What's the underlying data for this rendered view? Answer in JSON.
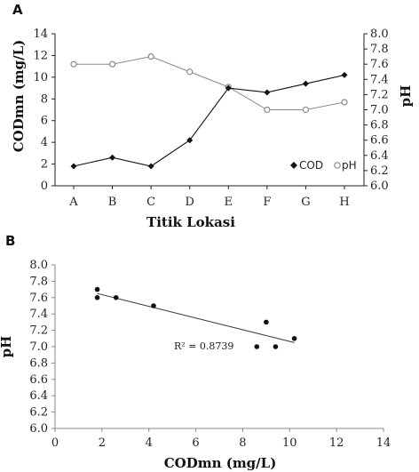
{
  "chart_data": [
    {
      "panel_label": "A",
      "type": "line",
      "categories": [
        "A",
        "B",
        "C",
        "D",
        "E",
        "F",
        "G",
        "H"
      ],
      "xlabel": "Titik Lokasi",
      "ylabel": "CODmn (mg/L)",
      "ylim": [
        0,
        14
      ],
      "yticks": [
        "0",
        "2",
        "4",
        "6",
        "8",
        "10",
        "12",
        "14"
      ],
      "y2label": "pH",
      "y2lim": [
        6.0,
        8.0
      ],
      "y2ticks": [
        "6.0",
        "6.2",
        "6.4",
        "6.6",
        "6.8",
        "7.0",
        "7.2",
        "7.4",
        "7.6",
        "7.8",
        "8.0"
      ],
      "legend_position": "bottom-right",
      "series": [
        {
          "name": "COD",
          "axis": "left",
          "marker": "filled-diamond",
          "color": "#111111",
          "values": [
            1.8,
            2.6,
            1.8,
            4.2,
            9.0,
            8.6,
            9.4,
            10.2
          ]
        },
        {
          "name": "pH",
          "axis": "right",
          "marker": "open-circle",
          "color": "#888888",
          "values": [
            7.6,
            7.6,
            7.7,
            7.5,
            7.3,
            7.0,
            7.0,
            7.1
          ]
        }
      ]
    },
    {
      "panel_label": "B",
      "type": "scatter",
      "xlabel": "CODmn (mg/L)",
      "ylabel": "pH",
      "xlim": [
        0,
        14
      ],
      "xticks": [
        "0",
        "2",
        "4",
        "6",
        "8",
        "10",
        "12",
        "14"
      ],
      "ylim": [
        6.0,
        8.0
      ],
      "yticks": [
        "6.0",
        "6.2",
        "6.4",
        "6.6",
        "6.8",
        "7.0",
        "7.2",
        "7.4",
        "7.6",
        "7.8",
        "8.0"
      ],
      "points": [
        {
          "x": 1.8,
          "y": 7.7
        },
        {
          "x": 1.8,
          "y": 7.6
        },
        {
          "x": 2.6,
          "y": 7.6
        },
        {
          "x": 4.2,
          "y": 7.5
        },
        {
          "x": 8.6,
          "y": 7.0
        },
        {
          "x": 9.0,
          "y": 7.3
        },
        {
          "x": 9.4,
          "y": 7.0
        },
        {
          "x": 10.2,
          "y": 7.1
        }
      ],
      "trendline": {
        "x": [
          1.8,
          10.2
        ],
        "y": [
          7.65,
          7.05
        ]
      },
      "annotation": "R² = 0.8739",
      "grid": false
    }
  ],
  "colors": {
    "axis": "#222222",
    "cod": "#111111",
    "ph": "#888888",
    "trend": "#333333"
  }
}
